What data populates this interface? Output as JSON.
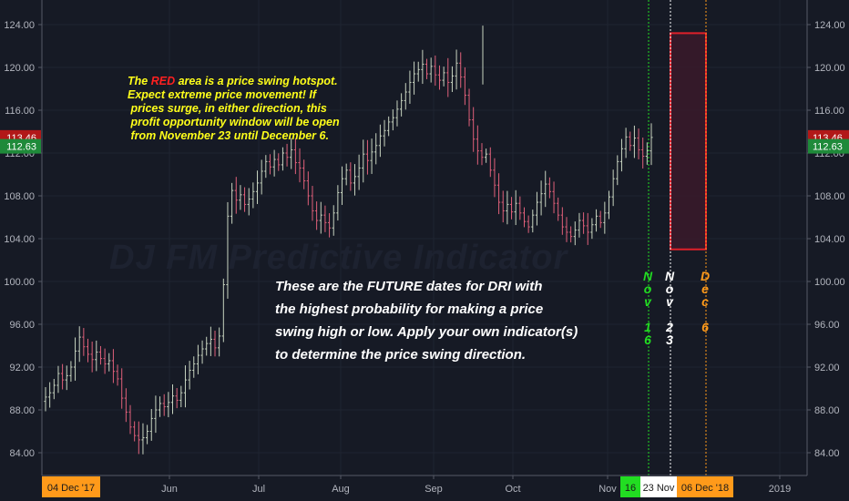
{
  "watermark": "DJ FM Predictive Indicator",
  "annotation_hotspot": {
    "line1_pre": "The ",
    "red_word": "RED",
    "line1_post": " area is a price swing hotspot.",
    "line2": "Expect extreme price movement!  If",
    "line3": "prices surge, in either direction, this",
    "line4": "profit opportunity window will be open",
    "line5": "from November 23 until December 6."
  },
  "annotation_future": {
    "line1": "These are the FUTURE dates  for DRI with",
    "line2": "the highest probability for making a price",
    "line3": "swing high or low. Apply your own indicator(s)",
    "line4": "to determine the price swing direction."
  },
  "colors": {
    "background": "#161a25",
    "up_bar": "#c8d4c0",
    "down_bar": "#e0607a",
    "green_marker": "#22dd22",
    "white_marker": "#ffffff",
    "orange_marker": "#ff9a1a",
    "hotspot_border": "#e0202a",
    "hotspot_fill": "#3a1a2a",
    "price_last": "#b21818",
    "price_prev": "#1f8a3a"
  },
  "chart_data": {
    "type": "ohlc",
    "title": "",
    "y_ticks": [
      "124.00",
      "120.00",
      "116.00",
      "112.00",
      "108.00",
      "104.00",
      "100.00",
      "96.00",
      "92.00",
      "88.00",
      "84.00"
    ],
    "x_ticks": [
      "Jun",
      "Jul",
      "Aug",
      "Sep",
      "Oct",
      "Nov",
      "2019"
    ],
    "x_date_labels": [
      "04 Dec '17",
      "16",
      "23 Nov",
      "06 Dec '18"
    ],
    "price_labels": {
      "last": "113.46",
      "previous": "112.63"
    },
    "ylim": [
      82,
      126
    ],
    "date_markers": [
      {
        "date": "2018-11-16",
        "chars": [
          "N",
          "o",
          "v",
          "",
          "1",
          "6"
        ],
        "color": "green"
      },
      {
        "date": "2018-11-23",
        "chars": [
          "N",
          "o",
          "v",
          "",
          "2",
          "3"
        ],
        "color": "white"
      },
      {
        "date": "2018-12-06",
        "chars": [
          "D",
          "e",
          "c",
          "",
          "6"
        ],
        "color": "orange"
      }
    ],
    "hotspot": {
      "start": "2018-11-23",
      "end": "2018-12-06",
      "high": 123.2,
      "low": 103.0
    },
    "series": [
      {
        "values": [
          89.2,
          89.6,
          90.3,
          91.4,
          90.8,
          91.2,
          92.0,
          93.5,
          94.8,
          93.9,
          93.2,
          92.7,
          93.4,
          92.8,
          92.3,
          92.6,
          91.6,
          90.9,
          89.1,
          87.8,
          86.4,
          85.6,
          85.2,
          85.4,
          86.0,
          87.2,
          88.0,
          88.6,
          88.3,
          88.7,
          89.3,
          88.9,
          89.6,
          90.8,
          91.7,
          92.3,
          93.1,
          93.7,
          94.2,
          94.6,
          93.8,
          94.9,
          99.7,
          106.1,
          108.5,
          107.6,
          108.1,
          107.2,
          107.7,
          108.4,
          109.2,
          110.3,
          111.2,
          110.7,
          111.4,
          110.9,
          112.0,
          111.6,
          112.3,
          111.1,
          110.6,
          109.4,
          108.0,
          106.6,
          105.7,
          106.2,
          105.5,
          105.0,
          106.4,
          108.3,
          109.6,
          110.4,
          109.2,
          109.8,
          110.6,
          111.9,
          111.3,
          112.1,
          112.7,
          113.6,
          114.1,
          114.9,
          115.3,
          116.1,
          116.9,
          117.7,
          118.6,
          119.4,
          119.8,
          120.3,
          119.4,
          120.1,
          119.3,
          118.8,
          119.5,
          118.6,
          119.2,
          120.4,
          119.1,
          117.4,
          115.1,
          113.3,
          112.2,
          111.6,
          111.9,
          110.4,
          109.0,
          107.4,
          106.6,
          107.2,
          106.5,
          107.3,
          106.4,
          105.6,
          105.1,
          106.2,
          107.4,
          108.2,
          109.1,
          108.4,
          107.3,
          106.2,
          105.1,
          104.6,
          104.2,
          104.8,
          105.7,
          105.2,
          104.6,
          105.3,
          106.1,
          105.5,
          106.4,
          107.9,
          109.6,
          111.2,
          112.4,
          113.5,
          112.7,
          113.4,
          112.3,
          111.7,
          112.2,
          113.46
        ]
      }
    ]
  }
}
